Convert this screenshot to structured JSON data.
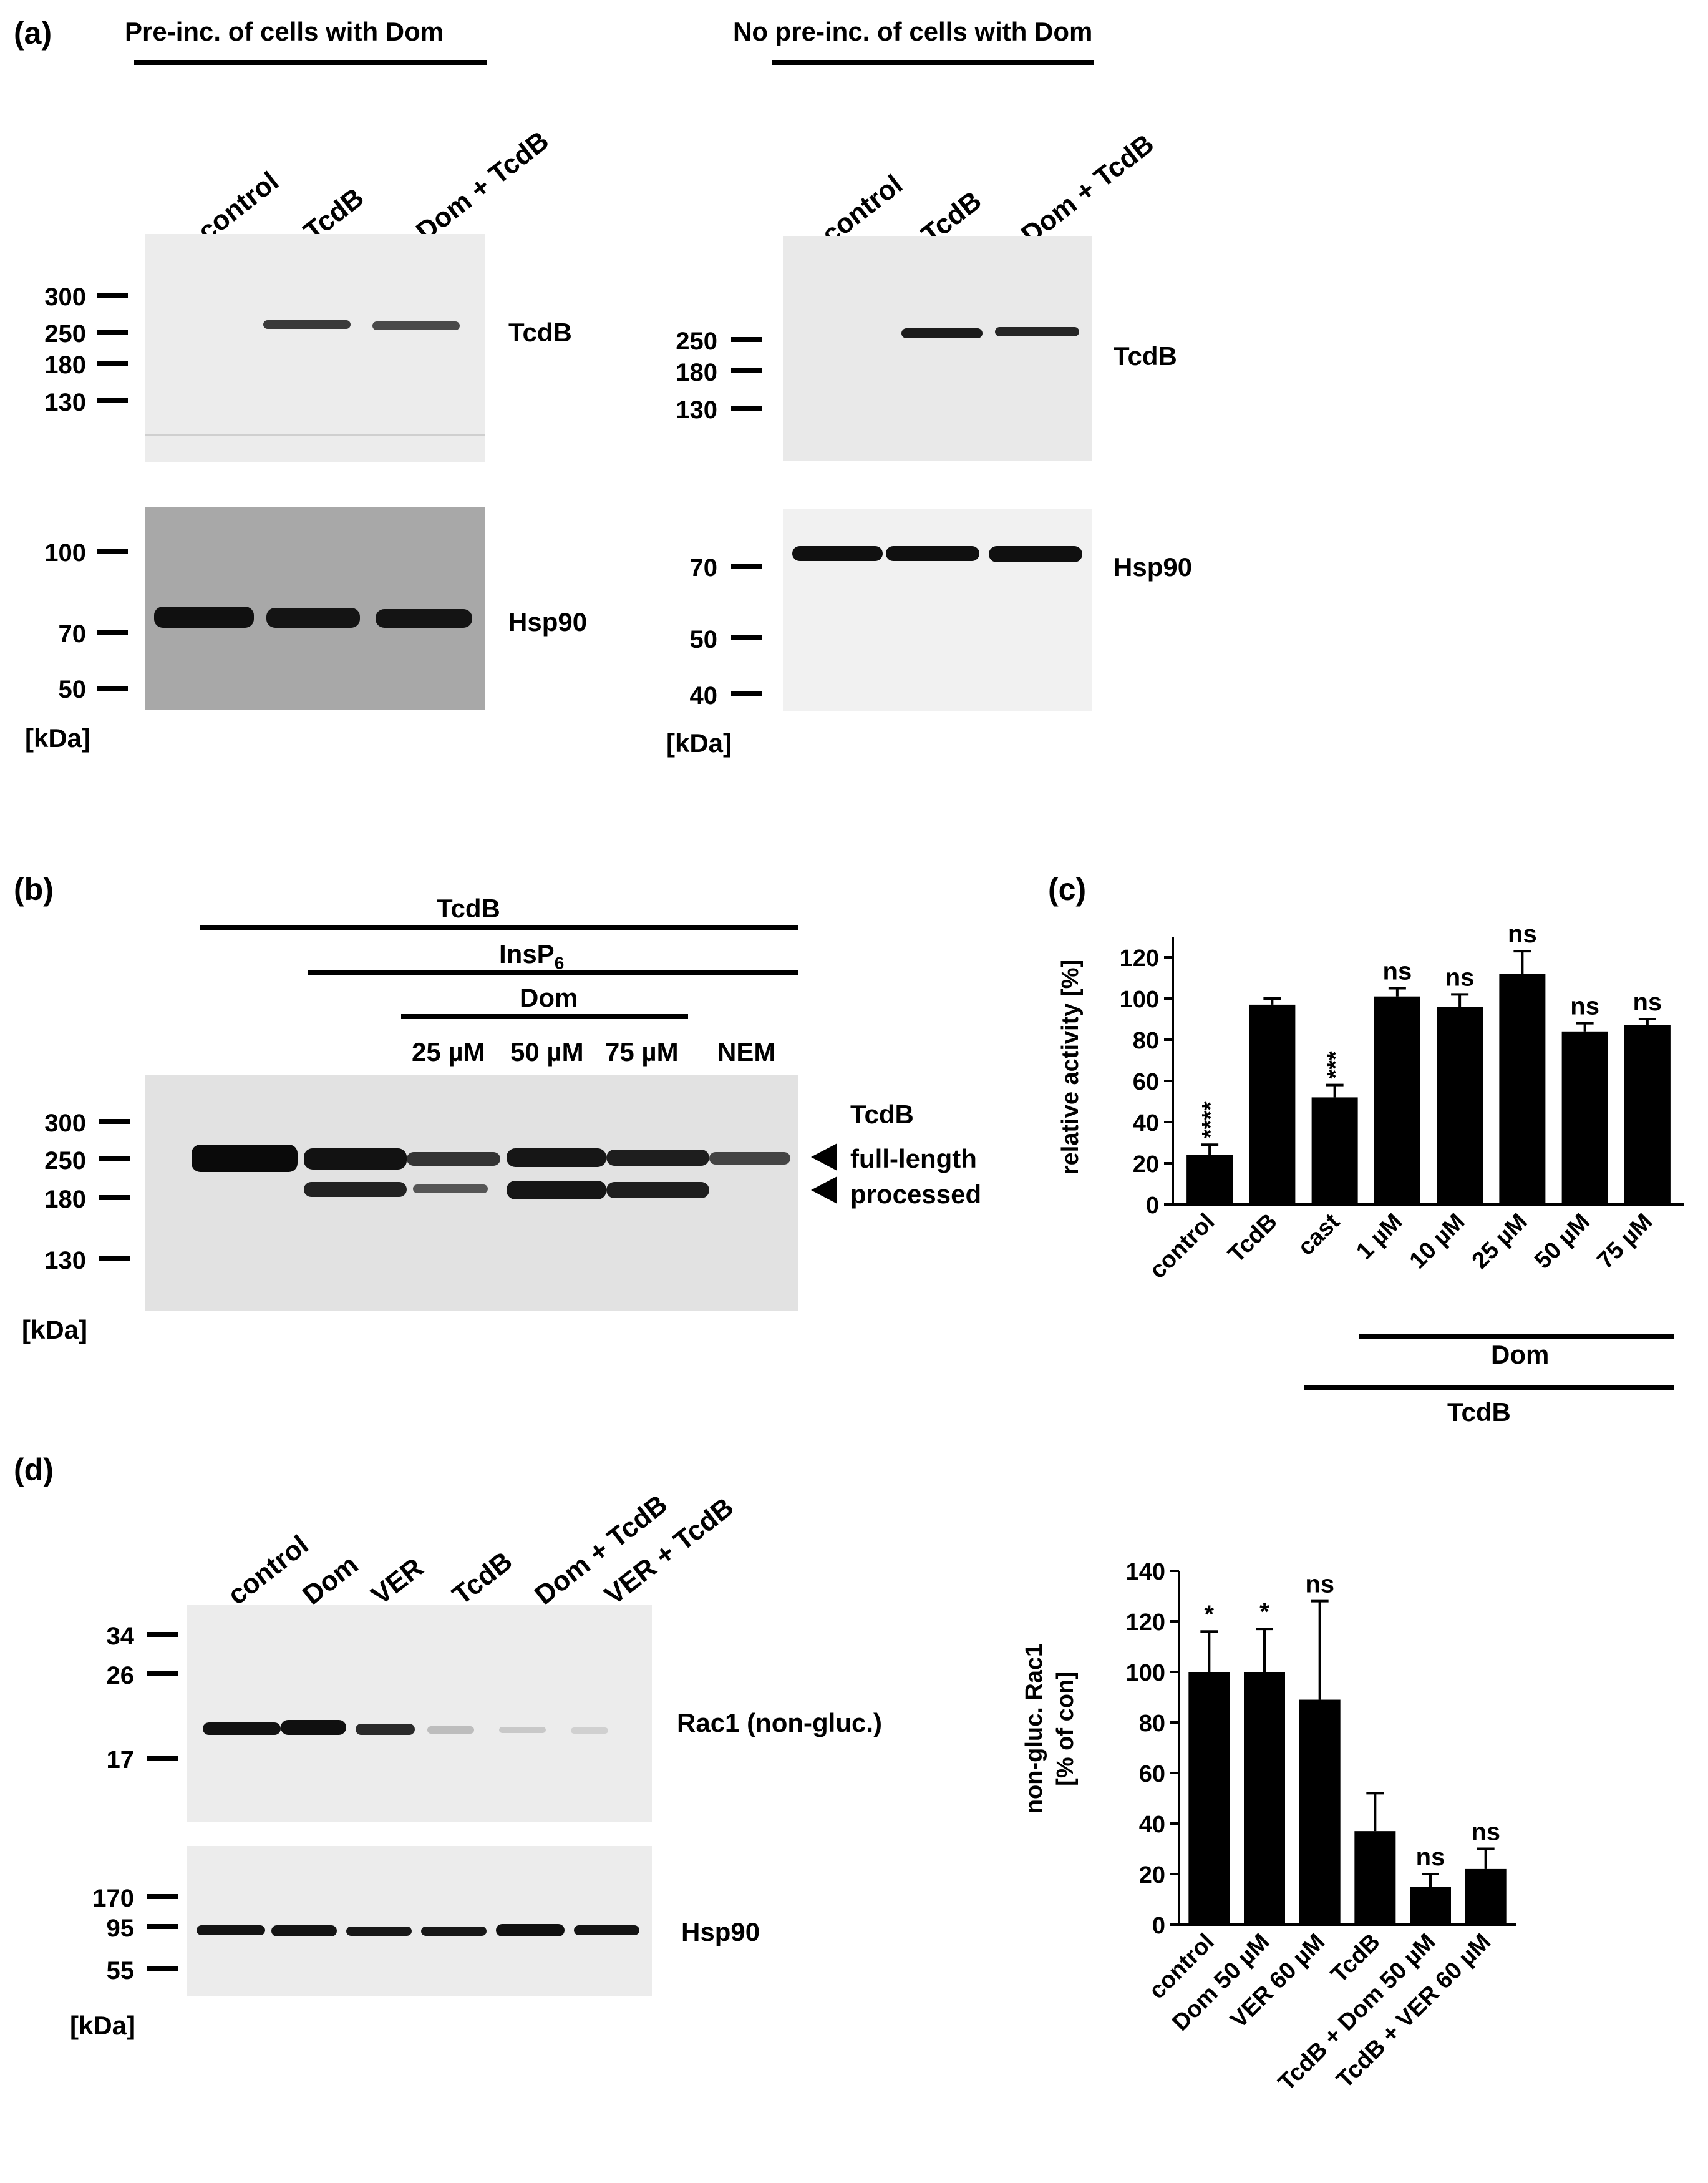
{
  "panel_a": {
    "label": "(a)",
    "left": {
      "title": "Pre-inc. of cells with Dom",
      "lanes": [
        "control",
        "TcdB",
        "Dom + TcdB"
      ],
      "blot1_name": "TcdB",
      "blot1_markers": [
        "300",
        "250",
        "180",
        "130"
      ],
      "blot2_name": "Hsp90",
      "blot2_markers": [
        "100",
        "70",
        "50"
      ],
      "unit": "[kDa]"
    },
    "right": {
      "title": "No pre-inc. of cells with Dom",
      "lanes": [
        "control",
        "TcdB",
        "Dom + TcdB"
      ],
      "blot1_name": "TcdB",
      "blot1_markers": [
        "250",
        "180",
        "130"
      ],
      "blot2_name": "Hsp90",
      "blot2_markers": [
        "70",
        "50",
        "40"
      ],
      "unit": "[kDa]"
    }
  },
  "panel_b": {
    "label": "(b)",
    "header_tcdb": "TcdB",
    "header_insp6": "InsP",
    "header_insp6_sub": "6",
    "header_dom": "Dom",
    "lanes": [
      "25 µM",
      "50 µM",
      "75 µM",
      "NEM"
    ],
    "blot_name": "TcdB",
    "arrow_labels": [
      "full-length",
      "processed"
    ],
    "markers": [
      "300",
      "250",
      "180",
      "130"
    ],
    "unit": "[kDa]"
  },
  "panel_c": {
    "label": "(c)",
    "group_dom": "Dom",
    "group_tcdb": "TcdB"
  },
  "panel_d": {
    "label": "(d)",
    "lanes": [
      "control",
      "Dom",
      "VER",
      "TcdB",
      "Dom + TcdB",
      "VER + TcdB"
    ],
    "blot1_name": "Rac1 (non-gluc.)",
    "blot1_markers": [
      "34",
      "26",
      "17"
    ],
    "blot2_name": "Hsp90",
    "blot2_markers": [
      "170",
      "95",
      "55"
    ],
    "unit": "[kDa]"
  },
  "chart_data": [
    {
      "id": "c",
      "type": "bar",
      "categories": [
        "control",
        "TcdB",
        "cast",
        "1 µM",
        "10 µM",
        "25 µM",
        "50 µM",
        "75 µM"
      ],
      "values": [
        24,
        97,
        52,
        101,
        96,
        112,
        84,
        87
      ],
      "errors": [
        5,
        3,
        6,
        4,
        6,
        11,
        4,
        3
      ],
      "annotations": [
        "****",
        "",
        "***",
        "ns",
        "ns",
        "ns",
        "ns",
        "ns"
      ],
      "ylabel": "relative activity [%]",
      "ylim": [
        0,
        130
      ],
      "yticks": [
        0,
        20,
        40,
        60,
        80,
        100,
        120
      ],
      "color": "#000000"
    },
    {
      "id": "d",
      "type": "bar",
      "categories": [
        "control",
        "Dom 50 µM",
        "VER 60 µM",
        "TcdB",
        "TcdB + Dom 50 µM",
        "TcdB + VER 60 µM"
      ],
      "values": [
        100,
        100,
        89,
        37,
        15,
        22
      ],
      "errors": [
        16,
        17,
        39,
        15,
        5,
        8
      ],
      "annotations": [
        "*",
        "*",
        "ns",
        "",
        "ns",
        "ns"
      ],
      "ylabel": "non-gluc. Rac1",
      "ylabel2": "[% of con]",
      "ylim": [
        0,
        140
      ],
      "yticks": [
        0,
        20,
        40,
        60,
        80,
        100,
        120,
        140
      ],
      "color": "#000000"
    }
  ]
}
